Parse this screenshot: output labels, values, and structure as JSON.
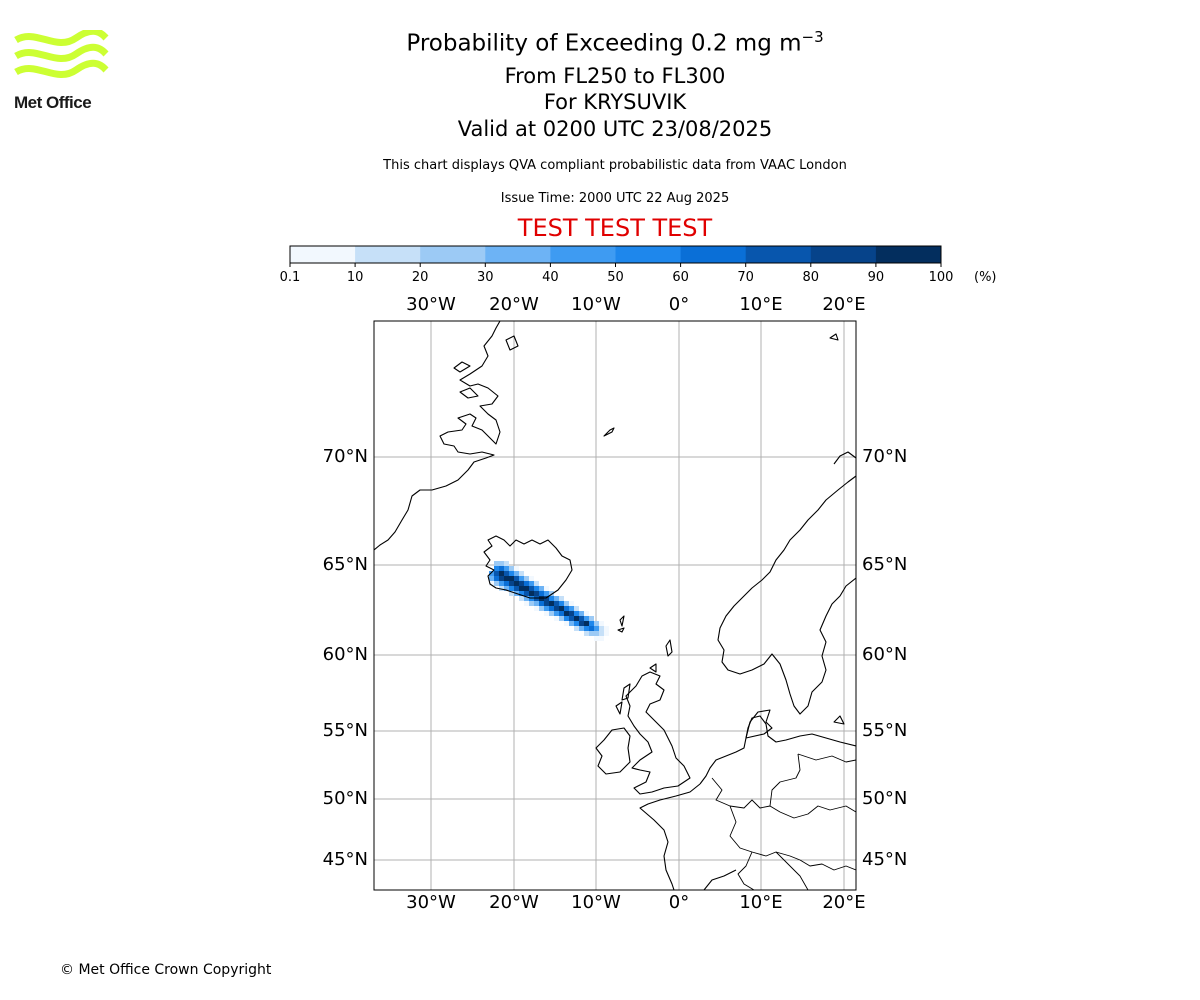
{
  "logo": {
    "text": "Met Office",
    "colors": {
      "waves": "#ccff33",
      "text": "#1a1a1a"
    }
  },
  "header": {
    "title_main": "Probability of Exceeding 0.2 mg m",
    "title_sup": "−3",
    "level_range": "From FL250 to FL300",
    "volcano": "For KRYSUVIK",
    "valid_time": "Valid at 0200 UTC 23/08/2025",
    "description": "This chart displays QVA compliant probabilistic data from VAAC London",
    "issue_time": "Issue Time: 2000 UTC 22 Aug 2025",
    "test_banner": "TEST TEST TEST",
    "test_color": "#e00000"
  },
  "colorbar": {
    "ticks": [
      "0.1",
      "10",
      "20",
      "30",
      "40",
      "50",
      "60",
      "70",
      "80",
      "90",
      "100"
    ],
    "unit": "(%)",
    "colors": [
      "#f2f8fe",
      "#c6e0f8",
      "#9ccaf5",
      "#6db3f5",
      "#3e9bf2",
      "#1e87ec",
      "#0a6fd7",
      "#0856ad",
      "#06438a",
      "#032e5e"
    ]
  },
  "map": {
    "lon_labels": [
      "30°W",
      "20°W",
      "10°W",
      "0°",
      "10°E",
      "20°E"
    ],
    "lat_labels": [
      "70°N",
      "65°N",
      "60°N",
      "55°N",
      "50°N",
      "45°N"
    ],
    "grid_color": "#b0b0b0",
    "lat_range": [
      43,
      76
    ],
    "lon_range": [
      -37,
      21
    ],
    "plume": {
      "description_of_values": "probability percent by colour band",
      "peak_percent": 100
    }
  },
  "footer": {
    "copyright": "© Met Office Crown Copyright"
  }
}
